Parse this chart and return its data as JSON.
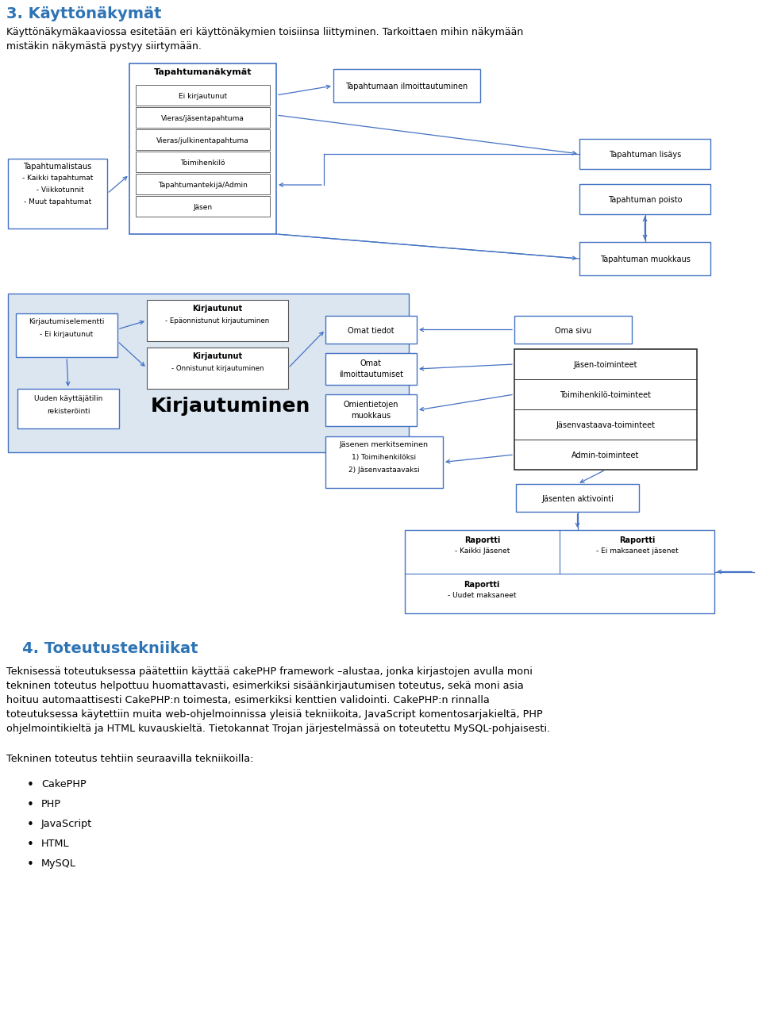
{
  "bg_color": "#ffffff",
  "title_color": "#2E74B5",
  "section3_title": "3. Käyttönäkymät",
  "section3_text1": "Käyttönäkymäkaaviossa esitetään eri käyttönäkymien toisiinsa liittyminen. Tarkoittaen mihin näkymään",
  "section3_text2": "mistäkin näkymästä pystyy siirtymään.",
  "section4_title": "4. Toteutustekniikat",
  "section4_para1": "Teknisessä toteutuksessa päätettiin käyttää cakePHP framework –alustaa, jonka kirjastojen avulla moni",
  "section4_para2": "tekninen toteutus helpottuu huomattavasti, esimerkiksi sisäänkirjautumisen toteutus, sekä moni asia",
  "section4_para3": "hoituu automaattisesti CakePHP:n toimesta, esimerkiksi kenttien validointi. CakePHP:n rinnalla",
  "section4_para4": "toteutuksessa käytettiin muita web-ohjelmoinnissa yleisiä tekniikoita, JavaScript komentosarjakieltä, PHP",
  "section4_para5": "ohjelmointikieltä ja HTML kuvauskieltä. Tietokannat Trojan järjestelmässä on toteutettu MySQL-pohjaisesti.",
  "section4_list_intro": "Tekninen toteutus tehtiin seuraavilla tekniikoilla:",
  "section4_list": [
    "CakePHP",
    "PHP",
    "JavaScript",
    "HTML",
    "MySQL"
  ],
  "arrow_color": "#4472c4",
  "box_edge_dark": "#333333",
  "box_edge_blue": "#4472c4",
  "bg_blue": "#dce6f1"
}
